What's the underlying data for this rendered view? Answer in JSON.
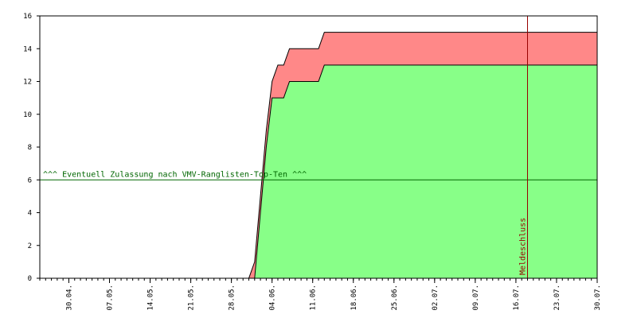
{
  "chart_data": {
    "type": "area",
    "title": "",
    "xlabel": "",
    "ylabel": "",
    "ylim": [
      0,
      16
    ],
    "y_ticks": [
      0,
      2,
      4,
      6,
      8,
      10,
      12,
      14,
      16
    ],
    "x_tick_labels": [
      "30.04.",
      "07.05.",
      "14.05.",
      "21.05.",
      "28.05.",
      "04.06.",
      "11.06.",
      "18.06.",
      "25.06.",
      "02.07.",
      "09.07.",
      "16.07.",
      "23.07.",
      "30.07."
    ],
    "x_range": [
      "2022-04-25",
      "2022-07-30"
    ],
    "grid": false,
    "series": [
      {
        "color": "#ff8888",
        "x": [
          "2022-04-25",
          "2022-05-31",
          "2022-06-01",
          "2022-06-02",
          "2022-06-03",
          "2022-06-04",
          "2022-06-05",
          "2022-06-06",
          "2022-06-07",
          "2022-06-12",
          "2022-06-13",
          "2022-07-30"
        ],
        "values": [
          0,
          0,
          1,
          5,
          9,
          12,
          13,
          13,
          14,
          14,
          15,
          15
        ]
      },
      {
        "color": "#88ff88",
        "x": [
          "2022-04-25",
          "2022-06-01",
          "2022-06-02",
          "2022-06-03",
          "2022-06-04",
          "2022-06-05",
          "2022-06-06",
          "2022-06-07",
          "2022-06-12",
          "2022-06-13",
          "2022-07-30"
        ],
        "values": [
          0,
          0,
          4,
          8,
          11,
          11,
          11,
          12,
          12,
          13,
          13
        ]
      }
    ],
    "reference_line": {
      "y": 6,
      "color": "#006600",
      "label": "^^^ Eventuell Zulassung nach VMV-Ranglisten-Top-Ten ^^^"
    },
    "marker_line": {
      "x": "2022-07-18",
      "color": "#990000",
      "label": "Meldeschluss"
    }
  }
}
